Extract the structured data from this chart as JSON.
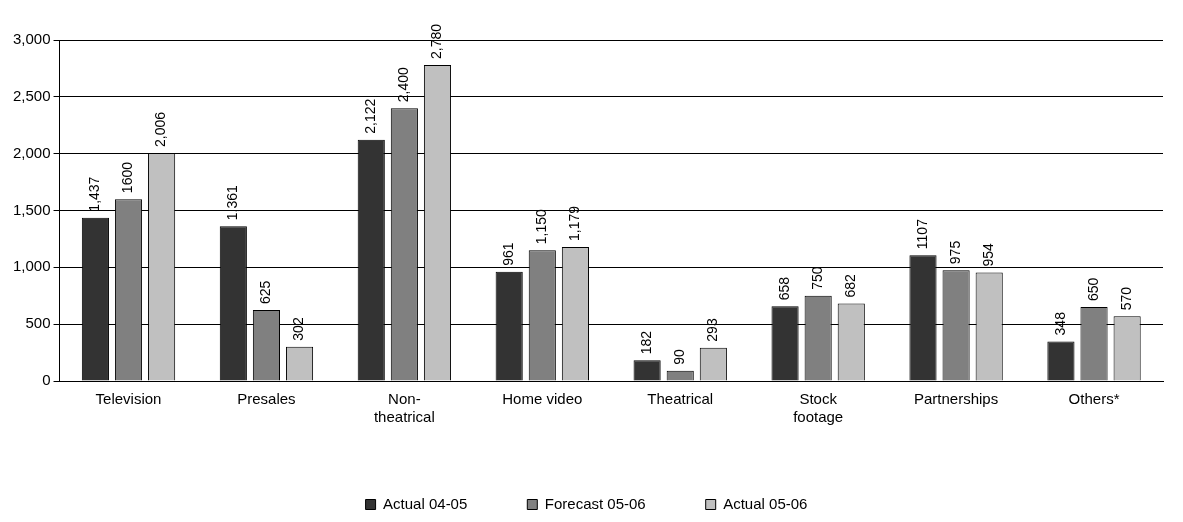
{
  "chart_data": {
    "type": "bar",
    "categories": [
      "Television",
      "Presales",
      "Non-\ntheatrical",
      "Home video",
      "Theatrical",
      "Stock\nfootage",
      "Partnerships",
      "Others*"
    ],
    "series": [
      {
        "name": "Actual 04-05",
        "color": "#333333",
        "values": [
          1437,
          1361,
          2122,
          961,
          182,
          658,
          1107,
          348
        ],
        "value_labels": [
          "1,437",
          "1,361",
          "2,122",
          "961",
          "182",
          "658",
          "1107",
          "348"
        ]
      },
      {
        "name": "Forecast 05-06",
        "color": "#808080",
        "values": [
          1600,
          625,
          2400,
          1150,
          90,
          750,
          975,
          650
        ],
        "value_labels": [
          "1600",
          "625",
          "2,400",
          "1,150",
          "90",
          "750",
          "975",
          "650"
        ]
      },
      {
        "name": "Actual 05-06",
        "color": "#c0c0c0",
        "values": [
          2006,
          302,
          2780,
          1179,
          293,
          682,
          954,
          570
        ],
        "value_labels": [
          "2,006",
          "302",
          "2,780",
          "1,179",
          "293",
          "682",
          "954",
          "570"
        ]
      }
    ],
    "ylim": [
      0,
      3000
    ],
    "yticks": [
      0,
      {
        "value": 500,
        "label": "500"
      },
      {
        "value": 1000,
        "label": "1,000"
      },
      {
        "value": 1500,
        "label": "1,500"
      },
      {
        "value": 2000,
        "label": "2,000"
      },
      {
        "value": 2500,
        "label": "2,500"
      },
      {
        "value": 3000,
        "label": "3,000"
      }
    ],
    "grid": "y",
    "legend": "bottom"
  }
}
